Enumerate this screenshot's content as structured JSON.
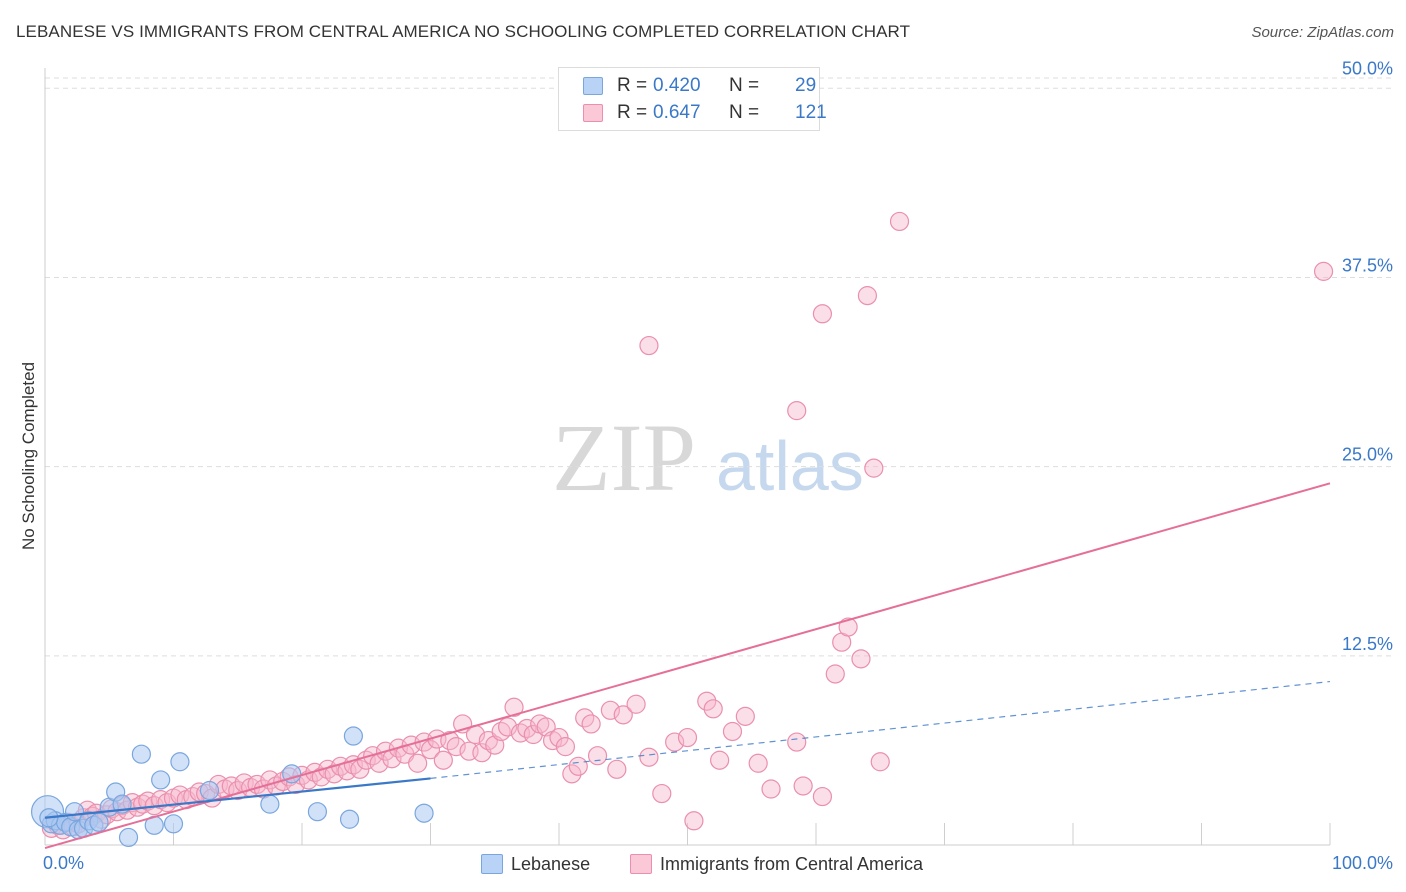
{
  "header": {
    "title": "LEBANESE VS IMMIGRANTS FROM CENTRAL AMERICA NO SCHOOLING COMPLETED CORRELATION CHART",
    "source": "Source: ZipAtlas.com"
  },
  "watermark": {
    "zip": "ZIP",
    "atlas": "atlas"
  },
  "legend": {
    "rows": [
      {
        "r_label": "R =",
        "r_value": "0.420",
        "n_label": "N =",
        "n_value": "29"
      },
      {
        "r_label": "R =",
        "r_value": "0.647",
        "n_label": "N =",
        "n_value": "121"
      }
    ]
  },
  "colors": {
    "blue_fill": "#a9c8f2",
    "blue_stroke": "#7aa6de",
    "blue_line": "#3a78c8",
    "pink_fill": "#f7b7cb",
    "pink_stroke": "#ea8fad",
    "pink_line": "#e56f98",
    "tick_label": "#3a78c8",
    "grid": "#dddddd"
  },
  "chart_data": {
    "type": "scatter",
    "title": "LEBANESE VS IMMIGRANTS FROM CENTRAL AMERICA NO SCHOOLING COMPLETED CORRELATION CHART",
    "xlabel": "",
    "ylabel": "No Schooling Completed",
    "xlim": [
      0,
      100
    ],
    "ylim": [
      0,
      52
    ],
    "x_tick_labels": [
      "0.0%",
      "100.0%"
    ],
    "y_ticks": [
      12.5,
      25.0,
      37.5,
      50.0
    ],
    "y_tick_labels": [
      "12.5%",
      "25.0%",
      "37.5%",
      "50.0%"
    ],
    "grid": true,
    "legend_position": "top-center",
    "series": [
      {
        "name": "Lebanese",
        "color": "#a9c8f2",
        "points": [
          [
            0.2,
            2.2
          ],
          [
            0.5,
            1.4
          ],
          [
            0.8,
            1.6
          ],
          [
            1.2,
            1.3
          ],
          [
            1.6,
            1.5
          ],
          [
            2.0,
            1.2
          ],
          [
            2.3,
            2.2
          ],
          [
            2.6,
            1.0
          ],
          [
            3.0,
            1.1
          ],
          [
            3.4,
            1.6
          ],
          [
            3.8,
            1.3
          ],
          [
            4.2,
            1.5
          ],
          [
            5.0,
            2.5
          ],
          [
            5.5,
            3.5
          ],
          [
            6.0,
            2.7
          ],
          [
            6.5,
            0.5
          ],
          [
            7.5,
            6.0
          ],
          [
            8.5,
            1.3
          ],
          [
            9.0,
            4.3
          ],
          [
            10.0,
            1.4
          ],
          [
            10.5,
            5.5
          ],
          [
            12.8,
            3.6
          ],
          [
            17.5,
            2.7
          ],
          [
            19.2,
            4.7
          ],
          [
            21.2,
            2.2
          ],
          [
            23.7,
            1.7
          ],
          [
            24.0,
            7.2
          ],
          [
            29.5,
            2.1
          ],
          [
            0.3,
            1.8
          ]
        ],
        "trend": {
          "x": [
            0,
            30
          ],
          "y": [
            1.8,
            4.4
          ],
          "dashed_extension": {
            "x": [
              30,
              100
            ],
            "y": [
              4.4,
              10.8
            ]
          }
        }
      },
      {
        "name": "Immigrants from Central America",
        "color": "#f7b7cb",
        "points": [
          [
            0.5,
            1.1
          ],
          [
            1.0,
            1.3
          ],
          [
            1.4,
            1.0
          ],
          [
            1.8,
            1.5
          ],
          [
            2.2,
            1.2
          ],
          [
            2.6,
            1.4
          ],
          [
            3.0,
            1.8
          ],
          [
            3.3,
            2.3
          ],
          [
            3.7,
            1.9
          ],
          [
            4.0,
            2.1
          ],
          [
            4.4,
            1.7
          ],
          [
            4.8,
            2.0
          ],
          [
            5.2,
            2.4
          ],
          [
            5.6,
            2.2
          ],
          [
            6.0,
            2.6
          ],
          [
            6.4,
            2.3
          ],
          [
            6.8,
            2.8
          ],
          [
            7.2,
            2.5
          ],
          [
            7.6,
            2.7
          ],
          [
            8.0,
            2.9
          ],
          [
            8.5,
            2.6
          ],
          [
            9.0,
            3.0
          ],
          [
            9.5,
            2.8
          ],
          [
            10.0,
            3.1
          ],
          [
            10.5,
            3.3
          ],
          [
            11.0,
            3.0
          ],
          [
            11.5,
            3.2
          ],
          [
            12.0,
            3.5
          ],
          [
            12.5,
            3.4
          ],
          [
            13.0,
            3.1
          ],
          [
            13.5,
            4.0
          ],
          [
            14.0,
            3.7
          ],
          [
            14.5,
            3.9
          ],
          [
            15.0,
            3.6
          ],
          [
            15.5,
            4.1
          ],
          [
            16.0,
            3.8
          ],
          [
            16.5,
            4.0
          ],
          [
            17.0,
            3.7
          ],
          [
            17.5,
            4.3
          ],
          [
            18.0,
            3.9
          ],
          [
            18.5,
            4.2
          ],
          [
            19.0,
            4.5
          ],
          [
            19.5,
            4.0
          ],
          [
            20.0,
            4.6
          ],
          [
            20.5,
            4.3
          ],
          [
            21.0,
            4.8
          ],
          [
            21.5,
            4.5
          ],
          [
            22.0,
            5.0
          ],
          [
            22.5,
            4.7
          ],
          [
            23.0,
            5.2
          ],
          [
            23.5,
            4.9
          ],
          [
            24.0,
            5.3
          ],
          [
            24.5,
            5.0
          ],
          [
            25.0,
            5.6
          ],
          [
            25.5,
            5.9
          ],
          [
            26.0,
            5.4
          ],
          [
            26.5,
            6.2
          ],
          [
            27.0,
            5.7
          ],
          [
            27.5,
            6.4
          ],
          [
            28.0,
            6.0
          ],
          [
            28.5,
            6.6
          ],
          [
            29.0,
            5.4
          ],
          [
            29.5,
            6.8
          ],
          [
            30.0,
            6.3
          ],
          [
            30.5,
            7.0
          ],
          [
            31.0,
            5.6
          ],
          [
            31.5,
            6.9
          ],
          [
            32.0,
            6.5
          ],
          [
            32.5,
            8.0
          ],
          [
            33.0,
            6.2
          ],
          [
            33.5,
            7.3
          ],
          [
            34.0,
            6.1
          ],
          [
            34.5,
            6.9
          ],
          [
            35.0,
            6.6
          ],
          [
            35.5,
            7.5
          ],
          [
            36.0,
            7.8
          ],
          [
            36.5,
            9.1
          ],
          [
            37.0,
            7.4
          ],
          [
            37.5,
            7.7
          ],
          [
            38.0,
            7.3
          ],
          [
            38.5,
            8.0
          ],
          [
            39.0,
            7.8
          ],
          [
            39.5,
            6.9
          ],
          [
            40.0,
            7.1
          ],
          [
            40.5,
            6.5
          ],
          [
            41.0,
            4.7
          ],
          [
            41.5,
            5.2
          ],
          [
            42.0,
            8.4
          ],
          [
            42.5,
            8.0
          ],
          [
            43.0,
            5.9
          ],
          [
            44.0,
            8.9
          ],
          [
            44.5,
            5.0
          ],
          [
            45.0,
            8.6
          ],
          [
            46.0,
            9.3
          ],
          [
            47.0,
            5.8
          ],
          [
            48.0,
            3.4
          ],
          [
            49.0,
            6.8
          ],
          [
            50.0,
            7.1
          ],
          [
            50.5,
            1.6
          ],
          [
            51.5,
            9.5
          ],
          [
            52.0,
            9.0
          ],
          [
            52.5,
            5.6
          ],
          [
            53.5,
            7.5
          ],
          [
            54.5,
            8.5
          ],
          [
            55.5,
            5.4
          ],
          [
            56.5,
            3.7
          ],
          [
            58.5,
            6.8
          ],
          [
            59.0,
            3.9
          ],
          [
            60.5,
            3.2
          ],
          [
            61.5,
            11.3
          ],
          [
            62.0,
            13.4
          ],
          [
            62.5,
            14.4
          ],
          [
            63.5,
            12.3
          ],
          [
            64.5,
            24.9
          ],
          [
            65.0,
            5.5
          ],
          [
            47.0,
            33.0
          ],
          [
            58.5,
            28.7
          ],
          [
            60.5,
            35.1
          ],
          [
            64.0,
            36.3
          ],
          [
            66.5,
            41.2
          ],
          [
            99.5,
            37.9
          ]
        ],
        "trend": {
          "x": [
            0,
            100
          ],
          "y": [
            -0.2,
            23.9
          ]
        }
      }
    ]
  },
  "bottom_legend": [
    {
      "label": "Lebanese"
    },
    {
      "label": "Immigrants from Central America"
    }
  ]
}
